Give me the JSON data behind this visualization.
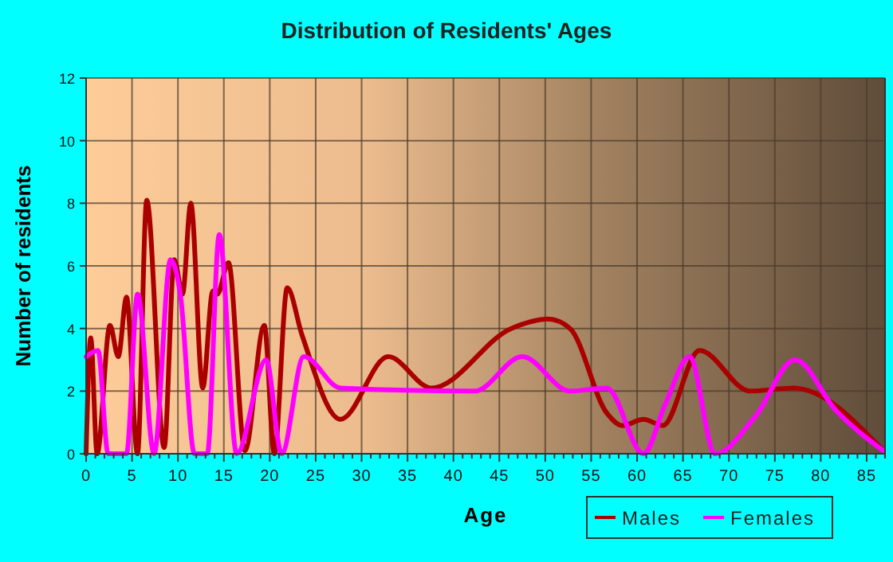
{
  "chart_data": {
    "type": "line",
    "title": "Distribution of Residents' Ages",
    "xlabel": "Age",
    "ylabel": "Number of residents",
    "xlim": [
      0,
      87
    ],
    "ylim": [
      0,
      12
    ],
    "xticks": [
      0,
      {
        "value": 1,
        "label": null
      },
      {
        "value": 2,
        "label": null
      },
      {
        "value": 3,
        "label": null
      },
      {
        "value": 4,
        "label": null
      },
      5,
      {
        "value": 6,
        "label": null
      },
      {
        "value": 7,
        "label": null
      },
      {
        "value": 8,
        "label": null
      },
      {
        "value": 9,
        "label": null
      },
      10,
      {
        "value": 11,
        "label": null
      },
      {
        "value": 12,
        "label": null
      },
      {
        "value": 13,
        "label": null
      },
      {
        "value": 14,
        "label": null
      },
      15,
      {
        "value": 16,
        "label": null
      },
      {
        "value": 17,
        "label": null
      },
      {
        "value": 18,
        "label": null
      },
      {
        "value": 19,
        "label": null
      },
      20,
      {
        "value": 21,
        "label": null
      },
      {
        "value": 22,
        "label": null
      },
      {
        "value": 23,
        "label": null
      },
      {
        "value": 24,
        "label": null
      },
      25,
      {
        "value": 26,
        "label": null
      },
      {
        "value": 27,
        "label": null
      },
      {
        "value": 28,
        "label": null
      },
      {
        "value": 29,
        "label": null
      },
      30,
      {
        "value": 31,
        "label": null
      },
      {
        "value": 32,
        "label": null
      },
      {
        "value": 33,
        "label": null
      },
      {
        "value": 34,
        "label": null
      },
      35,
      {
        "value": 36,
        "label": null
      },
      {
        "value": 37,
        "label": null
      },
      {
        "value": 38,
        "label": null
      },
      {
        "value": 39,
        "label": null
      },
      40,
      {
        "value": 41,
        "label": null
      },
      {
        "value": 42,
        "label": null
      },
      {
        "value": 43,
        "label": null
      },
      {
        "value": 44,
        "label": null
      },
      45,
      {
        "value": 46,
        "label": null
      },
      {
        "value": 47,
        "label": null
      },
      {
        "value": 48,
        "label": null
      },
      {
        "value": 49,
        "label": null
      },
      50,
      {
        "value": 51,
        "label": null
      },
      {
        "value": 52,
        "label": null
      },
      {
        "value": 53,
        "label": null
      },
      {
        "value": 54,
        "label": null
      },
      55,
      {
        "value": 56,
        "label": null
      },
      {
        "value": 57,
        "label": null
      },
      {
        "value": 58,
        "label": null
      },
      {
        "value": 59,
        "label": null
      },
      60,
      {
        "value": 61,
        "label": null
      },
      {
        "value": 62,
        "label": null
      },
      {
        "value": 63,
        "label": null
      },
      {
        "value": 64,
        "label": null
      },
      65,
      {
        "value": 66,
        "label": null
      },
      {
        "value": 67,
        "label": null
      },
      {
        "value": 68,
        "label": null
      },
      {
        "value": 69,
        "label": null
      },
      70,
      {
        "value": 71,
        "label": null
      },
      {
        "value": 72,
        "label": null
      },
      {
        "value": 73,
        "label": null
      },
      {
        "value": 74,
        "label": null
      },
      75,
      {
        "value": 76,
        "label": null
      },
      {
        "value": 77,
        "label": null
      },
      {
        "value": 78,
        "label": null
      },
      {
        "value": 79,
        "label": null
      },
      80,
      {
        "value": 81,
        "label": null
      },
      {
        "value": 82,
        "label": null
      },
      {
        "value": 83,
        "label": null
      },
      {
        "value": 84,
        "label": null
      },
      85,
      {
        "value": 86,
        "label": null
      },
      {
        "value": 87,
        "label": null
      }
    ],
    "yticks": [
      0,
      2,
      4,
      6,
      8,
      10,
      12
    ],
    "grid": true,
    "legend": "bottom right",
    "marker": "none",
    "line_style": "solid",
    "series": [
      {
        "name": "Males",
        "color": "#aa0000",
        "x": [
          0,
          0.5,
          1.2,
          2.6,
          3.5,
          4.4,
          5.6,
          6.6,
          8.5,
          9.6,
          10.5,
          11.4,
          12.7,
          13.8,
          14.3,
          15.5,
          17.3,
          19.4,
          20.5,
          21.9,
          23.5,
          27.7,
          32.9,
          37.6,
          46.3,
          50.3,
          52.7,
          56.7,
          58.4,
          60.7,
          62.8,
          66.8,
          72.3,
          77,
          86.8
        ],
        "values": [
          0,
          3.7,
          0,
          4.1,
          3.1,
          5,
          0,
          8.1,
          0.2,
          6.2,
          5.1,
          8,
          2.1,
          5.2,
          5.1,
          6.1,
          0.1,
          4.1,
          0,
          5.3,
          3.8,
          1.1,
          3.1,
          2.1,
          4,
          4.3,
          4,
          1.3,
          0.9,
          1.1,
          0.9,
          3.3,
          2,
          2.1,
          0.1
        ]
      },
      {
        "name": "Females",
        "color": "#ff00ff",
        "x": [
          0,
          1.3,
          2.4,
          4.4,
          5.6,
          7.4,
          9.2,
          10.3,
          11.8,
          13.2,
          14.5,
          16.4,
          19.6,
          21.3,
          23.7,
          27.7,
          42.3,
          47.5,
          52.7,
          56.7,
          60.7,
          63.1,
          65.7,
          68.5,
          72.9,
          77.2,
          81.6,
          86.8
        ],
        "values": [
          3.1,
          3.3,
          0,
          0,
          5.1,
          0,
          6.2,
          5,
          0,
          0,
          7,
          0,
          3,
          0,
          3.1,
          2.1,
          2,
          3.1,
          2,
          2.1,
          0,
          1.6,
          3.1,
          0,
          1.2,
          3,
          1.4,
          0.1
        ]
      }
    ]
  }
}
